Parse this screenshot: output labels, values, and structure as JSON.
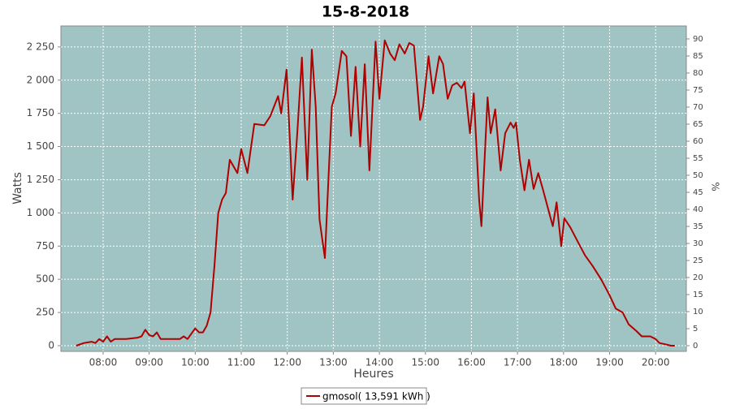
{
  "chart_data": {
    "type": "line",
    "title": "15-8-2018",
    "x_label": "Heures",
    "y_label": "Watts",
    "y2_label": "%",
    "background": "#a0c4c4",
    "grid": true,
    "xlim": [
      "07:05",
      "20:40"
    ],
    "xticks": [
      "08:00",
      "09:00",
      "10:00",
      "11:00",
      "12:00",
      "13:00",
      "14:00",
      "15:00",
      "16:00",
      "17:00",
      "18:00",
      "19:00",
      "20:00"
    ],
    "ylim": [
      -43,
      2408
    ],
    "yticks": [
      0,
      250,
      500,
      750,
      {
        "value": 1000,
        "label": "1 000"
      },
      {
        "value": 1250,
        "label": "1 250"
      },
      {
        "value": 1500,
        "label": "1 500"
      },
      {
        "value": 1750,
        "label": "1 750"
      },
      {
        "value": 2000,
        "label": "2 000"
      },
      {
        "value": 2250,
        "label": "2 250"
      }
    ],
    "y2lim": [
      -1.67,
      93.8
    ],
    "y2ticks": [
      0,
      5,
      10,
      15,
      20,
      25,
      30,
      35,
      40,
      45,
      50,
      55,
      60,
      65,
      70,
      75,
      80,
      85,
      90
    ],
    "x": [
      "07:25",
      "07:35",
      "07:45",
      "07:50",
      "07:55",
      "08:00",
      "08:05",
      "08:10",
      "08:15",
      "08:30",
      "08:45",
      "08:50",
      "08:55",
      "09:00",
      "09:05",
      "09:10",
      "09:15",
      "09:30",
      "09:40",
      "09:45",
      "09:50",
      "09:55",
      "10:00",
      "10:05",
      "10:10",
      "10:15",
      "10:20",
      "10:25",
      "10:30",
      "10:35",
      "10:40",
      "10:45",
      "10:50",
      "10:55",
      "11:00",
      "11:08",
      "11:17",
      "11:30",
      "11:38",
      "11:48",
      "11:52",
      "11:59",
      "12:03",
      "12:07",
      "12:13",
      "12:19",
      "12:26",
      "12:32",
      "12:37",
      "12:42",
      "12:49",
      "12:54",
      "12:58",
      "13:03",
      "13:11",
      "13:17",
      "13:23",
      "13:29",
      "13:35",
      "13:41",
      "13:47",
      "13:55",
      "14:00",
      "14:07",
      "14:14",
      "14:20",
      "14:26",
      "14:33",
      "14:39",
      "14:45",
      "14:53",
      "14:57",
      "15:04",
      "15:10",
      "15:18",
      "15:23",
      "15:29",
      "15:35",
      "15:41",
      "15:47",
      "15:51",
      "15:58",
      "16:03",
      "16:10",
      "16:13",
      "16:21",
      "16:25",
      "16:31",
      "16:38",
      "16:44",
      "16:51",
      "16:55",
      "16:58",
      "17:03",
      "17:09",
      "17:15",
      "17:21",
      "17:27",
      "17:33",
      "17:39",
      "17:46",
      "17:51",
      "17:57",
      "18:01",
      "18:09",
      "18:17",
      "18:28",
      "18:38",
      "18:49",
      "19:00",
      "19:08",
      "19:17",
      "19:25",
      "19:35",
      "19:42",
      "19:53",
      "20:00",
      "20:05",
      "20:13",
      "20:20",
      "20:25"
    ],
    "series": [
      {
        "name": "gmosol( 13,591 kWh )",
        "color": "#b00000",
        "values": [
          0,
          20,
          30,
          20,
          50,
          30,
          70,
          30,
          50,
          50,
          60,
          70,
          120,
          80,
          70,
          100,
          50,
          50,
          50,
          70,
          50,
          90,
          130,
          100,
          100,
          150,
          250,
          600,
          1000,
          1100,
          1150,
          1400,
          1350,
          1300,
          1480,
          1300,
          1670,
          1660,
          1730,
          1880,
          1750,
          2080,
          1600,
          1100,
          1600,
          2170,
          1250,
          2230,
          1800,
          950,
          660,
          1300,
          1800,
          1900,
          2220,
          2180,
          1580,
          2100,
          1500,
          2120,
          1320,
          2290,
          1860,
          2300,
          2200,
          2150,
          2270,
          2200,
          2280,
          2260,
          1700,
          1800,
          2180,
          1900,
          2180,
          2120,
          1860,
          1960,
          1980,
          1940,
          1990,
          1600,
          1900,
          1100,
          900,
          1870,
          1600,
          1780,
          1320,
          1600,
          1680,
          1640,
          1680,
          1400,
          1170,
          1400,
          1180,
          1300,
          1180,
          1050,
          900,
          1080,
          750,
          960,
          890,
          800,
          680,
          600,
          500,
          380,
          280,
          250,
          160,
          110,
          70,
          70,
          50,
          20,
          10,
          0,
          0
        ]
      }
    ]
  }
}
